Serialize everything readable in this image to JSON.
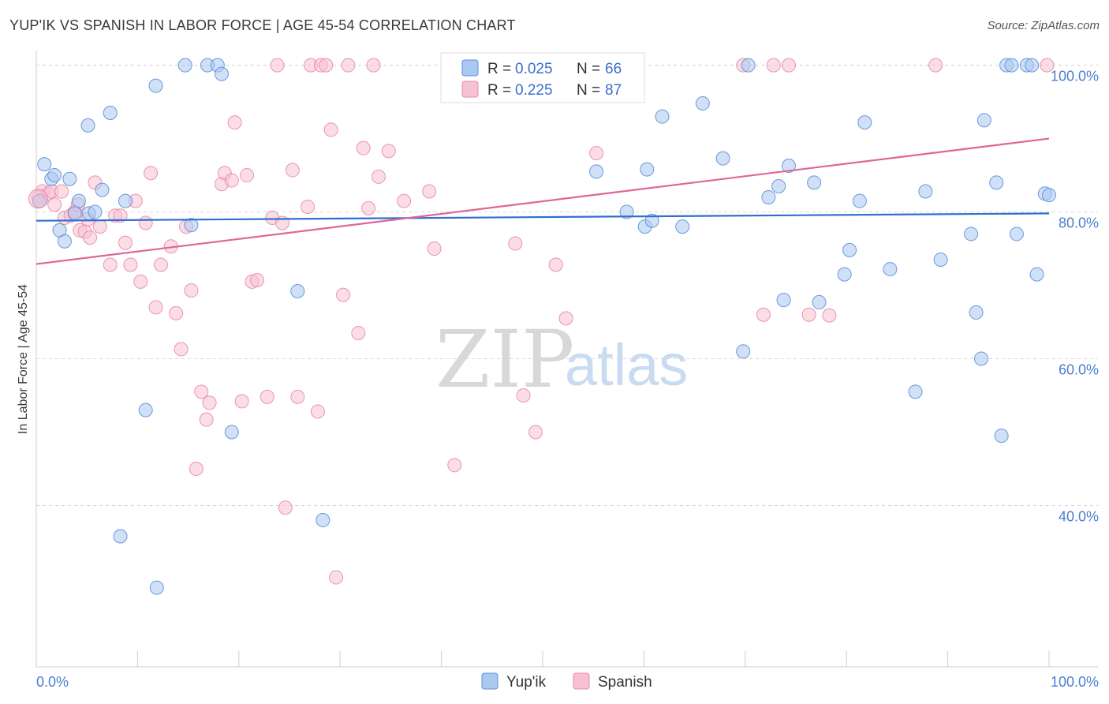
{
  "header": {
    "title": "YUP'IK VS SPANISH IN LABOR FORCE | AGE 45-54 CORRELATION CHART",
    "source": "Source: ZipAtlas.com"
  },
  "watermark": {
    "zip": "ZIP",
    "atlas": "atlas"
  },
  "colors": {
    "yupik_fill": "#aac8f0",
    "yupik_stroke": "#5b8fd8",
    "yupik_line": "#2f6fce",
    "spanish_fill": "#f7c1d1",
    "spanish_stroke": "#e98aa8",
    "spanish_line": "#e0649a",
    "grid": "#d8d8d8",
    "tick_label": "#4a7fd0"
  },
  "legend": {
    "r_label": "R =",
    "n_label": "N =",
    "items": [
      {
        "series": "Yup'ik",
        "r": "0.025",
        "n": "66"
      },
      {
        "series": "Spanish",
        "r": "0.225",
        "n": "87"
      }
    ]
  },
  "chart_data": {
    "type": "scatter",
    "title": "YUP'IK VS SPANISH IN LABOR FORCE | AGE 45-54 CORRELATION CHART",
    "xlabel": "",
    "ylabel": "In Labor Force | Age 45-54",
    "xlim": [
      0,
      100
    ],
    "ylim": [
      18,
      102
    ],
    "x_tick_labels": [
      "0.0%",
      "100.0%"
    ],
    "y_ticks": [
      40,
      60,
      80,
      100
    ],
    "y_tick_labels": [
      "40.0%",
      "60.0%",
      "80.0%",
      "100.0%"
    ],
    "grid": true,
    "legend_position": "top-center",
    "series": [
      {
        "name": "Yup'ik",
        "trend": {
          "x0": 0,
          "y0": 78.8,
          "x1": 100,
          "y1": 79.8
        },
        "points": [
          [
            0.3,
            81.5
          ],
          [
            0.8,
            86.5
          ],
          [
            1.5,
            84.5
          ],
          [
            1.8,
            85
          ],
          [
            2.3,
            77.5
          ],
          [
            2.8,
            76
          ],
          [
            3.3,
            84.5
          ],
          [
            3.8,
            79.8
          ],
          [
            4.2,
            81.5
          ],
          [
            5.2,
            79.8
          ],
          [
            5.8,
            80
          ],
          [
            6.5,
            83
          ],
          [
            5.1,
            91.8
          ],
          [
            7.3,
            93.5
          ],
          [
            8.8,
            81.5
          ],
          [
            8.3,
            35.8
          ],
          [
            10.8,
            53
          ],
          [
            11.8,
            97.2
          ],
          [
            11.9,
            28.8
          ],
          [
            14.7,
            100
          ],
          [
            15.3,
            78.2
          ],
          [
            16.9,
            100
          ],
          [
            17.9,
            100
          ],
          [
            18.3,
            98.8
          ],
          [
            19.3,
            50
          ],
          [
            25.8,
            69.2
          ],
          [
            28.3,
            38
          ],
          [
            55.3,
            85.5
          ],
          [
            58.3,
            80
          ],
          [
            60.1,
            78
          ],
          [
            60.3,
            85.8
          ],
          [
            60.8,
            78.8
          ],
          [
            61.8,
            93
          ],
          [
            63.8,
            78
          ],
          [
            65.8,
            94.8
          ],
          [
            67.8,
            87.3
          ],
          [
            69.8,
            61
          ],
          [
            70.3,
            100
          ],
          [
            72.3,
            82
          ],
          [
            73.3,
            83.5
          ],
          [
            73.8,
            68
          ],
          [
            74.3,
            86.3
          ],
          [
            76.8,
            84
          ],
          [
            77.3,
            67.7
          ],
          [
            79.8,
            71.5
          ],
          [
            80.3,
            74.8
          ],
          [
            81.3,
            81.5
          ],
          [
            81.8,
            92.2
          ],
          [
            84.3,
            72.2
          ],
          [
            86.8,
            55.5
          ],
          [
            87.8,
            82.8
          ],
          [
            89.3,
            73.5
          ],
          [
            92.3,
            77
          ],
          [
            92.8,
            66.3
          ],
          [
            93.3,
            60
          ],
          [
            93.6,
            92.5
          ],
          [
            94.8,
            84
          ],
          [
            95.3,
            49.5
          ],
          [
            96.8,
            77
          ],
          [
            95.8,
            100
          ],
          [
            97.8,
            100
          ],
          [
            98.3,
            100
          ],
          [
            98.8,
            71.5
          ],
          [
            99.6,
            82.5
          ],
          [
            100,
            82.3
          ],
          [
            96.3,
            100
          ]
        ]
      },
      {
        "name": "Spanish",
        "trend": {
          "x0": 0,
          "y0": 72.9,
          "x1": 100,
          "y1": 90
        },
        "points": [
          [
            0.3,
            81.5
          ],
          [
            0.6,
            82.8
          ],
          [
            1.2,
            82.5
          ],
          [
            1.5,
            82.8
          ],
          [
            1.8,
            81
          ],
          [
            2.5,
            82.8
          ],
          [
            2.8,
            79.2
          ],
          [
            3.4,
            79.5
          ],
          [
            3.8,
            80
          ],
          [
            4.1,
            81
          ],
          [
            4.3,
            77.5
          ],
          [
            4.8,
            77.3
          ],
          [
            5.1,
            79
          ],
          [
            5.3,
            76.5
          ],
          [
            5.8,
            84
          ],
          [
            6.3,
            78
          ],
          [
            7.3,
            72.8
          ],
          [
            7.8,
            79.5
          ],
          [
            8.3,
            79.5
          ],
          [
            8.8,
            75.8
          ],
          [
            9.3,
            72.8
          ],
          [
            9.8,
            81.5
          ],
          [
            10.3,
            70.5
          ],
          [
            10.8,
            78.5
          ],
          [
            11.3,
            85.3
          ],
          [
            11.8,
            67
          ],
          [
            12.3,
            72.8
          ],
          [
            13.3,
            75.3
          ],
          [
            13.8,
            66.2
          ],
          [
            14.3,
            61.3
          ],
          [
            14.8,
            78
          ],
          [
            15.3,
            69.3
          ],
          [
            15.8,
            45
          ],
          [
            16.3,
            55.5
          ],
          [
            16.8,
            51.7
          ],
          [
            17.1,
            54
          ],
          [
            18.3,
            83.8
          ],
          [
            18.6,
            85.3
          ],
          [
            19.3,
            84.3
          ],
          [
            19.6,
            92.2
          ],
          [
            20.3,
            54.2
          ],
          [
            20.8,
            85
          ],
          [
            21.3,
            70.5
          ],
          [
            21.8,
            70.7
          ],
          [
            22.8,
            54.8
          ],
          [
            23.3,
            79.2
          ],
          [
            23.8,
            100
          ],
          [
            24.3,
            78.5
          ],
          [
            24.6,
            39.7
          ],
          [
            25.3,
            85.7
          ],
          [
            25.8,
            54.8
          ],
          [
            26.8,
            80.7
          ],
          [
            27.1,
            100
          ],
          [
            27.8,
            52.8
          ],
          [
            28.1,
            100
          ],
          [
            28.6,
            100
          ],
          [
            29.1,
            91.2
          ],
          [
            29.6,
            30.2
          ],
          [
            30.3,
            68.7
          ],
          [
            30.8,
            100
          ],
          [
            31.8,
            63.5
          ],
          [
            32.3,
            88.7
          ],
          [
            32.8,
            80.5
          ],
          [
            33.3,
            100
          ],
          [
            33.8,
            84.8
          ],
          [
            34.8,
            88.3
          ],
          [
            36.3,
            81.5
          ],
          [
            38.8,
            82.8
          ],
          [
            39.3,
            75
          ],
          [
            41.3,
            45.5
          ],
          [
            46.3,
            100
          ],
          [
            47.3,
            75.7
          ],
          [
            48.1,
            55
          ],
          [
            49.3,
            50
          ],
          [
            51.3,
            72.8
          ],
          [
            52.3,
            65.5
          ],
          [
            55.3,
            88
          ],
          [
            56.3,
            100
          ],
          [
            69.8,
            100
          ],
          [
            71.8,
            66
          ],
          [
            72.8,
            100
          ],
          [
            74.3,
            100
          ],
          [
            76.3,
            66
          ],
          [
            78.3,
            65.9
          ],
          [
            88.8,
            100
          ],
          [
            99.8,
            100
          ],
          [
            0.2,
            82
          ]
        ]
      }
    ]
  },
  "bottom_legend": [
    {
      "label": "Yup'ik"
    },
    {
      "label": "Spanish"
    }
  ]
}
